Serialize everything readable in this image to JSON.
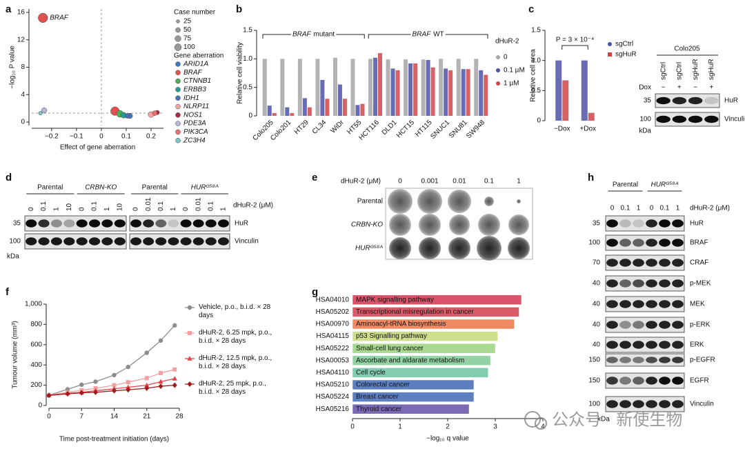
{
  "panel_labels": [
    "a",
    "b",
    "c",
    "d",
    "e",
    "f",
    "g",
    "h"
  ],
  "chart_data": [
    {
      "type": "scatter",
      "xlabel": "Effect of gene aberration",
      "ylabel": "−log₁₀ P value",
      "xlim": [
        -0.28,
        0.25
      ],
      "xticks": [
        {
          "value": -0.2,
          "label": "−0.2"
        },
        {
          "value": -0.1,
          "label": "−0.1"
        },
        0,
        0.1,
        0.2
      ],
      "ylim": [
        -0.5,
        16.5
      ],
      "yticks": [
        0,
        4,
        8,
        12,
        16
      ],
      "reference_lines": {
        "x": 0,
        "y": 1.3
      },
      "annotations": [
        "BRAF"
      ],
      "size_legend": {
        "title": "Case number",
        "values": [
          25,
          50,
          75,
          100
        ]
      },
      "legend_title": "Gene aberration",
      "series": [
        {
          "name": "ARID1A",
          "color": "#3d7cc0",
          "x": [
            0.115
          ],
          "values": [
            0.9
          ],
          "sizes": [
            30
          ]
        },
        {
          "name": "BRAF",
          "color": "#e0524f",
          "x": [
            -0.235,
            0.055
          ],
          "values": [
            15.2,
            1.6
          ],
          "sizes": [
            95,
            80
          ]
        },
        {
          "name": "CTNNB1",
          "color": "#4caf50",
          "x": [
            0.075
          ],
          "values": [
            1.2
          ],
          "sizes": [
            50
          ]
        },
        {
          "name": "ERBB3",
          "color": "#2a9d8f",
          "x": [
            0.09
          ],
          "values": [
            1.0
          ],
          "sizes": [
            35
          ]
        },
        {
          "name": "IDH1",
          "color": "#4a6fb5",
          "x": [
            0.105
          ],
          "values": [
            0.9
          ],
          "sizes": [
            25
          ]
        },
        {
          "name": "NLRP11",
          "color": "#f4a6a6",
          "x": [
            0.2
          ],
          "values": [
            1.1
          ],
          "sizes": [
            35
          ]
        },
        {
          "name": "NOS1",
          "color": "#a0304a",
          "x": [
            0.225
          ],
          "values": [
            1.4
          ],
          "sizes": [
            20
          ]
        },
        {
          "name": "PDE3A",
          "color": "#b7b7d6",
          "x": [
            -0.23
          ],
          "values": [
            1.7
          ],
          "sizes": [
            30
          ]
        },
        {
          "name": "PIK3CA",
          "color": "#e8706d",
          "x": [
            0.215
          ],
          "values": [
            1.3
          ],
          "sizes": [
            25
          ]
        },
        {
          "name": "ZC3H4",
          "color": "#7ec6c0",
          "x": [
            -0.245
          ],
          "values": [
            1.3
          ],
          "sizes": [
            15
          ]
        }
      ]
    },
    {
      "type": "bar",
      "ylabel": "Relative cell viability",
      "categories": [
        "Colo205",
        "Colo201",
        "HT29",
        "CL34",
        "WiDr",
        "HT55",
        "HCT116",
        "DLD1",
        "HCT15",
        "HT115",
        "SNUC1",
        "SNU81",
        "SW948"
      ],
      "ylim": [
        0,
        1.5
      ],
      "yticks": [
        0,
        0.5,
        {
          "value": 1,
          "label": "1.0"
        },
        1.5
      ],
      "group_labels": [
        {
          "gene": "BRAF",
          "text": "mutant"
        },
        {
          "gene": "BRAF",
          "text": "WT"
        }
      ],
      "legend_title": "dHuR-2",
      "series": [
        {
          "name": "0",
          "color": "#a6a6a6",
          "values": [
            1.0,
            1.0,
            1.0,
            1.0,
            1.02,
            1.0,
            1.0,
            0.99,
            0.99,
            0.99,
            1.0,
            1.0,
            1.0
          ]
        },
        {
          "name": "0.1 µM",
          "color": "#4c52a8",
          "values": [
            0.18,
            0.15,
            0.31,
            0.63,
            0.55,
            0.19,
            1.02,
            0.83,
            0.92,
            0.98,
            0.83,
            0.82,
            0.8
          ]
        },
        {
          "name": "1 µM",
          "color": "#d0464b",
          "values": [
            0.05,
            0.05,
            0.15,
            0.3,
            0.3,
            0.21,
            1.1,
            0.8,
            0.92,
            0.85,
            0.8,
            0.82,
            0.72
          ]
        }
      ]
    },
    {
      "type": "bar",
      "ylabel": "Relative cell area",
      "categories": [
        "−Dox",
        "+Dox"
      ],
      "ylim": [
        0,
        1.5
      ],
      "yticks": [
        0,
        0.5,
        {
          "value": 1,
          "label": "1.0"
        },
        1.5
      ],
      "annotations": [
        "P = 3 × 10⁻⁴"
      ],
      "series": [
        {
          "name": "sgCtrl",
          "color": "#4c52a8",
          "values": [
            1.0,
            1.0
          ]
        },
        {
          "name": "sgHuR",
          "color": "#d0464b",
          "values": [
            0.67,
            0.13
          ]
        }
      ]
    },
    {
      "type": "line",
      "xlabel": "Time post-treatment initiation (days)",
      "ylabel": "Tumour volume (mm³)",
      "x": [
        0,
        4,
        7,
        10,
        14,
        17,
        21,
        24,
        27
      ],
      "xlim": [
        0,
        28
      ],
      "xticks": [
        0,
        7,
        14,
        21,
        28
      ],
      "ylim": [
        0,
        1000
      ],
      "yticks": [
        0,
        200,
        400,
        600,
        800,
        {
          "value": 1000,
          "label": "1,000"
        }
      ],
      "series": [
        {
          "name": "Vehicle, p.o., b.i.d. × 28 days",
          "color": "#8c8c8c",
          "values": [
            100,
            160,
            205,
            235,
            300,
            380,
            520,
            640,
            790
          ]
        },
        {
          "name": "dHuR-2, 6.25 mpk, p.o., b.i.d. × 28 days",
          "color": "#f4a0a0",
          "values": [
            100,
            130,
            150,
            170,
            200,
            230,
            270,
            320,
            355
          ]
        },
        {
          "name": "dHuR-2, 12.5 mpk, p.o., b.i.d. × 28 days",
          "color": "#e0454a",
          "values": [
            100,
            120,
            130,
            145,
            165,
            180,
            200,
            235,
            265
          ]
        },
        {
          "name": "dHuR-2, 25 mpk, p.o., b.i.d. × 28 days",
          "color": "#a31a1a",
          "values": [
            100,
            115,
            125,
            130,
            145,
            155,
            170,
            190,
            200
          ]
        }
      ]
    },
    {
      "type": "barh",
      "xlabel": "−log₁₀ q value",
      "categories": [
        "HSA04010",
        "HSA05202",
        "HSA00970",
        "HSA04115",
        "HSA05222",
        "HSA00053",
        "HSA04110",
        "HSA05210",
        "HSA05224",
        "HSA05216"
      ],
      "bar_labels": [
        "MAPK signalling pathway",
        "Transcriptional misregulation in cancer",
        "Aminoacyl-tRNA biosynthesis",
        "p53 Signalling pathway",
        "Small-cell lung cancer",
        "Ascorbate and aldarate metabolism",
        "Cell cycle",
        "Colorectal cancer",
        "Breast cancer",
        "Thyroid cancer"
      ],
      "values": [
        3.55,
        3.5,
        3.4,
        3.05,
        3.0,
        2.9,
        2.85,
        2.55,
        2.55,
        2.45
      ],
      "colors": [
        "#d9546a",
        "#db5a68",
        "#f08a62",
        "#cddf8c",
        "#a9d891",
        "#93d3a3",
        "#82ccb0",
        "#5d7fc0",
        "#5e7fc0",
        "#7a6ab3"
      ],
      "xlim": [
        0,
        4
      ],
      "xticks": [
        0,
        1,
        2,
        3,
        4
      ]
    }
  ],
  "blot_c": {
    "title": "Colo205",
    "lanes": [
      "sgCtrl",
      "sgCtrl",
      "sgHuR",
      "sgHuR"
    ],
    "condition_label": "Dox",
    "condition": [
      "−",
      "+",
      "−",
      "+"
    ],
    "rows": [
      {
        "marker": "35",
        "name": "HuR"
      },
      {
        "marker": "100",
        "name": "Vinculin"
      }
    ],
    "unit": "kDa"
  },
  "blot_d": {
    "groups": [
      "Parental",
      "CRBN-KO",
      "Parental",
      "HURᴳ⁵⁸ᴬ"
    ],
    "lanes": [
      "0",
      "0.1",
      "1",
      "10",
      "0",
      "0.1",
      "1",
      "10",
      "0",
      "0.01",
      "0.1",
      "1",
      "0",
      "0.01",
      "0.1",
      "1"
    ],
    "treatment_label": "dHuR-2 (μM)",
    "rows": [
      {
        "marker": "35",
        "name": "HuR"
      },
      {
        "marker": "100",
        "name": "Vinculin"
      }
    ],
    "unit": "kDa"
  },
  "colony_e": {
    "treatment_label": "dHuR-2 (μM)",
    "doses": [
      "0",
      "0.001",
      "0.01",
      "0.1",
      "1"
    ],
    "rows": [
      "Parental",
      "CRBN-KO",
      "HURᴳ⁵⁸ᴬ"
    ]
  },
  "blot_h": {
    "groups": [
      "Parental",
      "HURᴳ⁵⁸ᴬ"
    ],
    "lanes": [
      "0",
      "0.1",
      "1",
      "0",
      "0.1",
      "1"
    ],
    "treatment_label": "dHuR-2 (μM)",
    "rows": [
      {
        "marker": "35",
        "name": "HuR"
      },
      {
        "marker": "100",
        "name": "BRAF"
      },
      {
        "marker": "70",
        "name": "CRAF"
      },
      {
        "marker": "40",
        "name": "p-MEK"
      },
      {
        "marker": "40",
        "name": "MEK"
      },
      {
        "marker": "40",
        "name": "p-ERK"
      },
      {
        "marker": "40",
        "name": "ERK"
      },
      {
        "marker": "150",
        "name": "p-EGFR"
      },
      {
        "marker": "150",
        "name": "EGFR"
      },
      {
        "marker": "100",
        "name": "Vinculin"
      }
    ],
    "unit": "kDa"
  },
  "watermark": "公众号 · 新使生物"
}
